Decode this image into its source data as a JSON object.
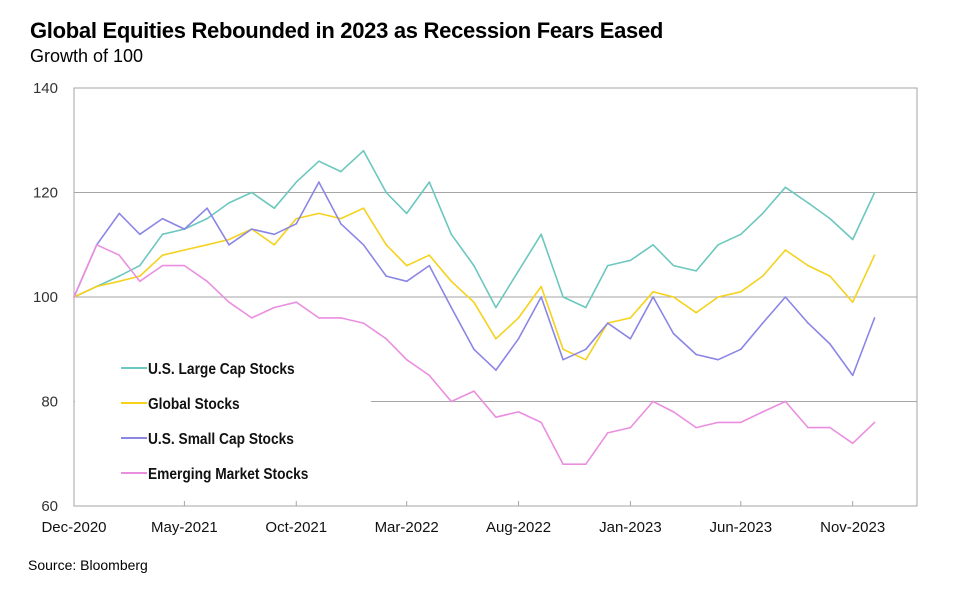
{
  "chart_data": {
    "type": "line",
    "title": "Global Equities Rebounded in 2023 as Recession Fears Eased",
    "subtitle": "Growth of 100",
    "source": "Source: Bloomberg",
    "xlabel": "",
    "ylabel": "",
    "ylim": [
      60,
      140
    ],
    "yticks": [
      "60",
      "80",
      "100",
      "120",
      "140"
    ],
    "xlim": [
      "2020-12-01",
      "2024-01-28"
    ],
    "xticks": [
      {
        "date": "2020-12-01",
        "label": "Dec-2020"
      },
      {
        "date": "2021-05-01",
        "label": "May-2021"
      },
      {
        "date": "2021-10-01",
        "label": "Oct-2021"
      },
      {
        "date": "2022-03-01",
        "label": "Mar-2022"
      },
      {
        "date": "2022-08-01",
        "label": "Aug-2022"
      },
      {
        "date": "2023-01-01",
        "label": "Jan-2023"
      },
      {
        "date": "2023-06-01",
        "label": "Jun-2023"
      },
      {
        "date": "2023-11-01",
        "label": "Nov-2023"
      }
    ],
    "grid": "horizontal",
    "legend_position": "bottom-left",
    "x": [
      "2020-12-01",
      "2021-01-01",
      "2021-02-01",
      "2021-03-01",
      "2021-04-01",
      "2021-05-01",
      "2021-06-01",
      "2021-07-01",
      "2021-08-01",
      "2021-09-01",
      "2021-10-01",
      "2021-11-01",
      "2021-12-01",
      "2022-01-01",
      "2022-02-01",
      "2022-03-01",
      "2022-04-01",
      "2022-05-01",
      "2022-06-01",
      "2022-07-01",
      "2022-08-01",
      "2022-09-01",
      "2022-10-01",
      "2022-11-01",
      "2022-12-01",
      "2023-01-01",
      "2023-02-01",
      "2023-03-01",
      "2023-04-01",
      "2023-05-01",
      "2023-06-01",
      "2023-07-01",
      "2023-08-01",
      "2023-09-01",
      "2023-10-01",
      "2023-11-01",
      "2023-12-01"
    ],
    "series": [
      {
        "name": "U.S. Large Cap Stocks",
        "color": "#6cc7bf",
        "values": [
          100,
          102,
          104,
          106,
          112,
          113,
          115,
          118,
          120,
          117,
          122,
          126,
          124,
          128,
          120,
          116,
          122,
          112,
          106,
          98,
          105,
          112,
          100,
          98,
          106,
          107,
          110,
          106,
          105,
          110,
          112,
          116,
          121,
          118,
          115,
          111,
          120
        ]
      },
      {
        "name": "Global Stocks",
        "color": "#f5d21e",
        "values": [
          100,
          102,
          103,
          104,
          108,
          109,
          110,
          111,
          113,
          110,
          115,
          116,
          115,
          117,
          110,
          106,
          108,
          103,
          99,
          92,
          96,
          102,
          90,
          88,
          95,
          96,
          101,
          100,
          97,
          100,
          101,
          104,
          109,
          106,
          104,
          99,
          108
        ]
      },
      {
        "name": "U.S. Small Cap Stocks",
        "color": "#8b86e6",
        "values": [
          100,
          110,
          116,
          112,
          115,
          113,
          117,
          110,
          113,
          112,
          114,
          122,
          114,
          110,
          104,
          103,
          106,
          98,
          90,
          86,
          92,
          100,
          88,
          90,
          95,
          92,
          100,
          93,
          89,
          88,
          90,
          95,
          100,
          95,
          91,
          85,
          96
        ]
      },
      {
        "name": "Emerging Market Stocks",
        "color": "#ea8fe0",
        "values": [
          100,
          110,
          108,
          103,
          106,
          106,
          103,
          99,
          96,
          98,
          99,
          96,
          96,
          95,
          92,
          88,
          85,
          80,
          82,
          77,
          78,
          76,
          68,
          68,
          74,
          75,
          80,
          78,
          75,
          76,
          76,
          78,
          80,
          75,
          75,
          72,
          76
        ]
      }
    ]
  }
}
